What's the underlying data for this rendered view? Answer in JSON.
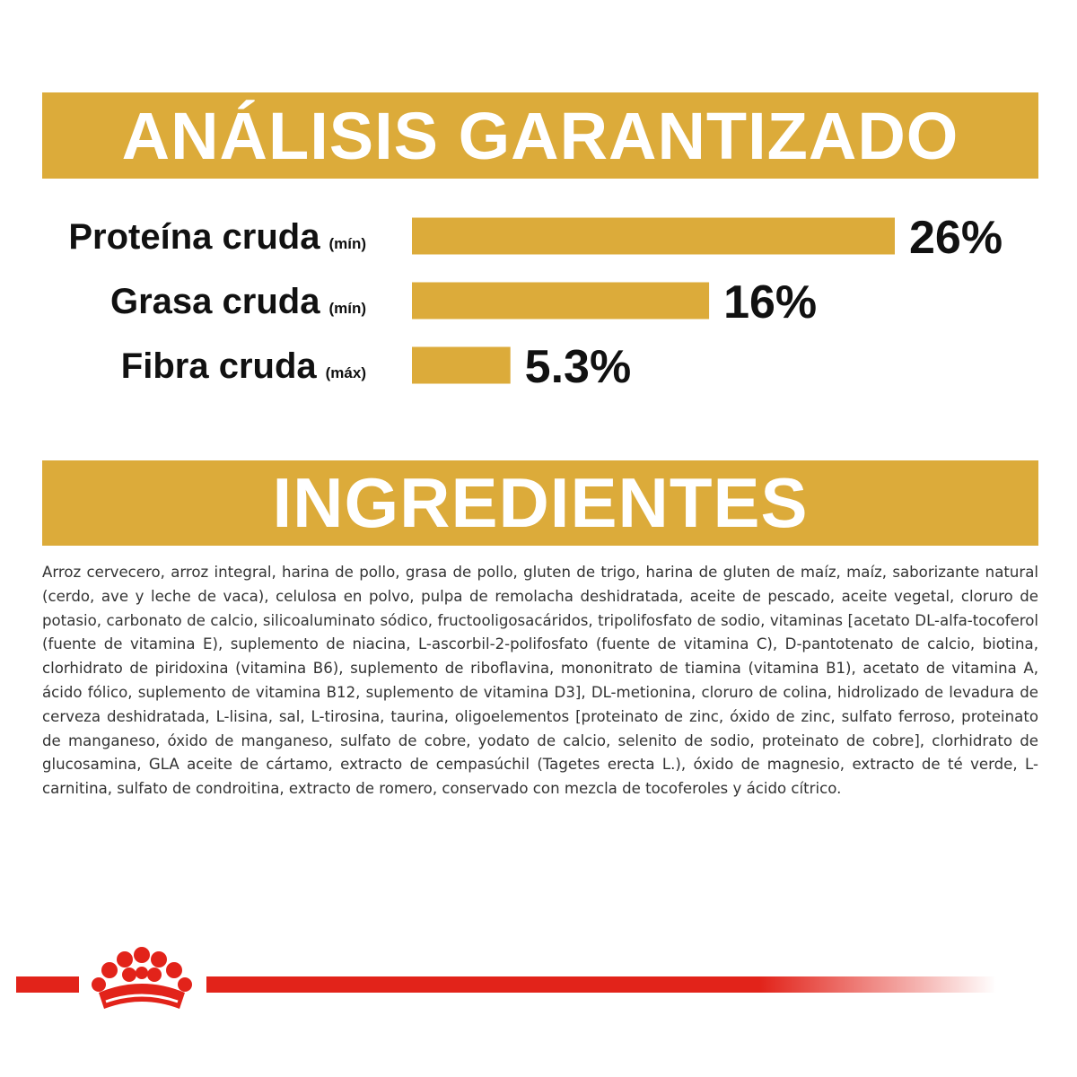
{
  "headers": {
    "analysis": "ANÁLISIS GARANTIZADO",
    "ingredients": "INGREDIENTES"
  },
  "chart_data": {
    "type": "bar",
    "orientation": "horizontal",
    "categories": [
      "Proteína cruda",
      "Grasa cruda",
      "Fibra cruda"
    ],
    "qualifiers": [
      "(mín)",
      "(mín)",
      "(máx)"
    ],
    "values": [
      26,
      16,
      5.3
    ],
    "value_labels": [
      "26%",
      "16%",
      "5.3%"
    ],
    "unit": "%",
    "xlim": [
      0,
      26
    ],
    "bar_color": "#dcab3a",
    "grid": false,
    "legend": "none"
  },
  "ingredients_text": "Arroz cervecero, arroz integral, harina de pollo, grasa de pollo, gluten de trigo, harina de gluten de maíz, maíz, saborizante natural (cerdo, ave y leche de vaca), celulosa en polvo, pulpa de remolacha deshidratada, aceite de pescado, aceite vegetal, cloruro de potasio, carbonato de calcio, silicoaluminato sódico, fructooligosacáridos, tripolifosfato de sodio, vitaminas [acetato DL-alfa-tocoferol (fuente de vitamina E), suplemento de niacina, L-ascorbil-2-polifosfato (fuente de vitamina C), D-pantotenato de calcio, biotina, clorhidrato de piridoxina (vitamina B6), suplemento de riboflavina, mononitrato de tiamina (vitamina B1), acetato de vitamina A, ácido fólico, suplemento de vitamina B12, suplemento de vitamina D3], DL-metionina, cloruro de colina, hidrolizado de levadura de cerveza deshidratada, L-lisina, sal, L-tirosina, taurina, oligoelementos [proteinato de zinc, óxido de zinc, sulfato ferroso, proteinato de manganeso, óxido de manganeso, sulfato de cobre, yodato de calcio, selenito de sodio, proteinato de cobre], clorhidrato de glucosamina, GLA aceite de cártamo, extracto de cempasúchil (Tagetes erecta L.), óxido de magnesio, extracto de té verde, L-carnitina, sulfato de condroitina, extracto de romero, conservado con mezcla de tocoferoles y ácido cítrico.",
  "colors": {
    "gold": "#dcab3a",
    "brand_red": "#e2231a"
  },
  "logo": {
    "icon": "crown-icon"
  }
}
